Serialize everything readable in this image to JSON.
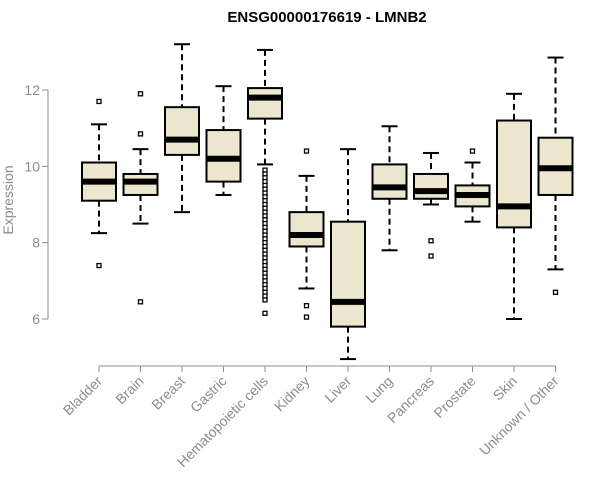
{
  "chart_data": {
    "type": "boxplot",
    "title": "ENSG00000176619 - LMNB2",
    "xlabel": "",
    "ylabel": "Expression",
    "ylim": [
      4.8,
      13.6
    ],
    "yticks": [
      6,
      8,
      10,
      12
    ],
    "box_color": "#ede6cf",
    "line_color": "#000000",
    "series": [
      {
        "name": "Bladder",
        "whisker_low": 8.25,
        "q1": 9.1,
        "median": 9.6,
        "q3": 10.1,
        "whisker_high": 11.1,
        "outliers": [
          11.7,
          7.4
        ]
      },
      {
        "name": "Brain",
        "whisker_low": 8.5,
        "q1": 9.25,
        "median": 9.6,
        "q3": 9.8,
        "whisker_high": 10.45,
        "outliers": [
          11.9,
          10.85,
          6.45
        ]
      },
      {
        "name": "Breast",
        "whisker_low": 8.8,
        "q1": 10.3,
        "median": 10.7,
        "q3": 11.55,
        "whisker_high": 13.2,
        "outliers": []
      },
      {
        "name": "Gastric",
        "whisker_low": 9.25,
        "q1": 9.6,
        "median": 10.2,
        "q3": 10.95,
        "whisker_high": 12.1,
        "outliers": []
      },
      {
        "name": "Hematopoietic cells",
        "whisker_low": 10.05,
        "q1": 11.25,
        "median": 11.8,
        "q3": 12.05,
        "whisker_high": 13.05,
        "outliers": [
          9.9,
          9.8,
          9.7,
          9.6,
          9.5,
          9.4,
          9.3,
          9.2,
          9.1,
          9.0,
          8.9,
          8.8,
          8.7,
          8.6,
          8.5,
          8.4,
          8.3,
          8.2,
          8.1,
          8.0,
          7.9,
          7.8,
          7.7,
          7.6,
          7.5,
          7.4,
          7.3,
          7.2,
          7.1,
          7.0,
          6.9,
          6.8,
          6.7,
          6.6,
          6.5,
          6.15
        ]
      },
      {
        "name": "Kidney",
        "whisker_low": 6.8,
        "q1": 7.9,
        "median": 8.2,
        "q3": 8.8,
        "whisker_high": 9.75,
        "outliers": [
          10.4,
          6.35,
          6.05
        ]
      },
      {
        "name": "Liver",
        "whisker_low": 4.95,
        "q1": 5.8,
        "median": 6.45,
        "q3": 8.55,
        "whisker_high": 10.45,
        "outliers": []
      },
      {
        "name": "Lung",
        "whisker_low": 7.8,
        "q1": 9.15,
        "median": 9.45,
        "q3": 10.05,
        "whisker_high": 11.05,
        "outliers": []
      },
      {
        "name": "Pancreas",
        "whisker_low": 9.0,
        "q1": 9.15,
        "median": 9.35,
        "q3": 9.8,
        "whisker_high": 10.35,
        "outliers": [
          8.05,
          7.65
        ]
      },
      {
        "name": "Prostate",
        "whisker_low": 8.55,
        "q1": 8.95,
        "median": 9.25,
        "q3": 9.5,
        "whisker_high": 10.1,
        "outliers": [
          10.4
        ]
      },
      {
        "name": "Skin",
        "whisker_low": 6.0,
        "q1": 8.4,
        "median": 8.95,
        "q3": 11.2,
        "whisker_high": 11.9,
        "outliers": []
      },
      {
        "name": "Unknown / Other",
        "whisker_low": 7.3,
        "q1": 9.25,
        "median": 9.95,
        "q3": 10.75,
        "whisker_high": 12.85,
        "outliers": [
          6.7
        ]
      }
    ]
  }
}
